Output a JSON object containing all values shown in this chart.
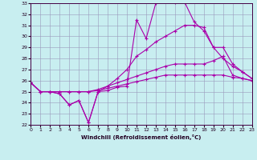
{
  "xlabel": "Windchill (Refroidissement éolien,°C)",
  "xlim": [
    0,
    23
  ],
  "ylim": [
    22,
    33
  ],
  "xticks": [
    0,
    1,
    2,
    3,
    4,
    5,
    6,
    7,
    8,
    9,
    10,
    11,
    12,
    13,
    14,
    15,
    16,
    17,
    18,
    19,
    20,
    21,
    22,
    23
  ],
  "yticks": [
    22,
    23,
    24,
    25,
    26,
    27,
    28,
    29,
    30,
    31,
    32,
    33
  ],
  "background_color": "#c8eef0",
  "grid_color": "#9999bb",
  "line_color": "#aa00aa",
  "line1_y": [
    25.8,
    25.0,
    25.0,
    24.8,
    23.8,
    24.2,
    22.2,
    25.0,
    25.1,
    25.4,
    25.5,
    31.5,
    29.8,
    33.0,
    33.2,
    33.1,
    33.1,
    31.3,
    30.5,
    29.0,
    28.0,
    27.3,
    26.8,
    26.2
  ],
  "line2_y": [
    25.8,
    25.0,
    25.0,
    24.8,
    23.8,
    24.2,
    22.2,
    25.0,
    25.5,
    26.2,
    27.0,
    28.2,
    28.8,
    29.5,
    30.0,
    30.5,
    31.0,
    31.0,
    30.8,
    29.0,
    29.0,
    27.5,
    26.8,
    26.2
  ],
  "line3_y": [
    25.8,
    25.0,
    25.0,
    25.0,
    25.0,
    25.0,
    25.0,
    25.2,
    25.5,
    25.8,
    26.1,
    26.4,
    26.7,
    27.0,
    27.3,
    27.5,
    27.5,
    27.5,
    27.5,
    27.8,
    28.2,
    26.5,
    26.2,
    26.0
  ],
  "line4_y": [
    25.8,
    25.0,
    25.0,
    25.0,
    25.0,
    25.0,
    25.0,
    25.1,
    25.3,
    25.5,
    25.7,
    25.9,
    26.1,
    26.3,
    26.5,
    26.5,
    26.5,
    26.5,
    26.5,
    26.5,
    26.5,
    26.3,
    26.2,
    26.0
  ]
}
